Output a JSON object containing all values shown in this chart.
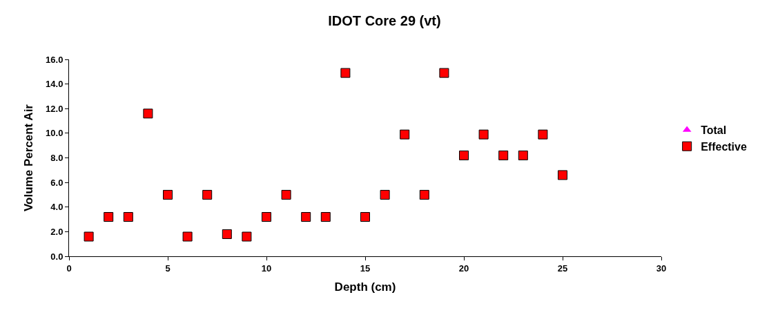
{
  "chart_data": {
    "type": "scatter",
    "title": "IDOT Core 29 (vt)",
    "xlabel": "Depth (cm)",
    "ylabel": "Volume Percent Air",
    "x": [
      1,
      2,
      3,
      4,
      5,
      6,
      7,
      8,
      9,
      10,
      11,
      12,
      13,
      14,
      15,
      16,
      17,
      18,
      19,
      20,
      21,
      22,
      23,
      24,
      25
    ],
    "series": [
      {
        "name": "Total",
        "color": "#ff00ff",
        "marker": "triangle",
        "values": [
          null,
          null,
          null,
          null,
          null,
          null,
          null,
          null,
          null,
          null,
          null,
          null,
          null,
          null,
          null,
          null,
          null,
          null,
          null,
          null,
          null,
          null,
          null,
          null,
          null
        ]
      },
      {
        "name": "Effective",
        "color": "#ff0000",
        "marker": "square",
        "values": [
          1.6,
          3.2,
          3.2,
          11.6,
          5.0,
          1.6,
          5.0,
          1.8,
          1.6,
          3.2,
          5.0,
          3.2,
          3.2,
          14.9,
          3.2,
          5.0,
          9.9,
          5.0,
          14.9,
          8.2,
          9.9,
          8.2,
          8.2,
          9.9,
          6.6
        ]
      }
    ],
    "xlim": [
      0,
      30
    ],
    "xticks": [
      0,
      5,
      10,
      15,
      20,
      25,
      30
    ],
    "ylim": [
      0,
      16
    ],
    "yticks": [
      {
        "value": 0,
        "label": "0.0"
      },
      {
        "value": 2,
        "label": "2.0"
      },
      {
        "value": 4,
        "label": "4.0"
      },
      {
        "value": 6,
        "label": "6.0"
      },
      {
        "value": 8,
        "label": "8.0"
      },
      {
        "value": 10,
        "label": "10.0"
      },
      {
        "value": 12,
        "label": "12.0"
      },
      {
        "value": 14,
        "label": "14.0"
      },
      {
        "value": 16,
        "label": "16.0"
      }
    ],
    "grid": false,
    "legend": "right"
  }
}
